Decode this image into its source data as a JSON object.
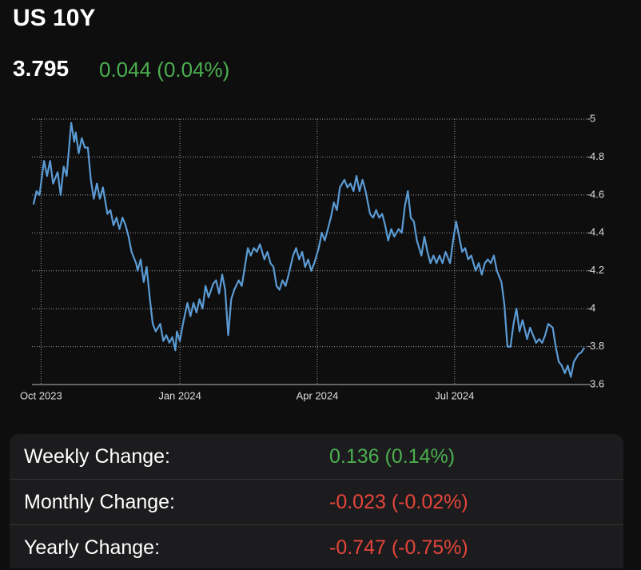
{
  "header": {
    "title": "US 10Y",
    "price": "3.795",
    "change": "0.044 (0.04%)",
    "change_color": "#4caf50"
  },
  "chart_data": {
    "type": "line",
    "color": "#5b9bd5",
    "x": [
      -5,
      -3,
      -1,
      2,
      4,
      6,
      8,
      11,
      13,
      15,
      17,
      20,
      22,
      23,
      25,
      27,
      29,
      31,
      33,
      35,
      37,
      39,
      41,
      44,
      46,
      48,
      50,
      52,
      54,
      56,
      58,
      60,
      63,
      64,
      66,
      68,
      70,
      72,
      74,
      76,
      79,
      81,
      83,
      85,
      87,
      89,
      90,
      92,
      94,
      97,
      99,
      101,
      103,
      105,
      107,
      109,
      111,
      114,
      116,
      118,
      120,
      122,
      124,
      126,
      128,
      131,
      133,
      135,
      137,
      139,
      141,
      143,
      145,
      148,
      150,
      152,
      154,
      156,
      158,
      160,
      162,
      164,
      167,
      169,
      171,
      173,
      175,
      177,
      179,
      181,
      184,
      186,
      188,
      190,
      192,
      194,
      196,
      198,
      201,
      203,
      205,
      207,
      209,
      211,
      213,
      215,
      218,
      220,
      222,
      224,
      226,
      228,
      230,
      232,
      234,
      237,
      239,
      241,
      243,
      245,
      247,
      249,
      252,
      254,
      256,
      258,
      260,
      262,
      264,
      266,
      268,
      271,
      273,
      275,
      277,
      279,
      281,
      283,
      285,
      288,
      290,
      292,
      294,
      296,
      298,
      300,
      302,
      305,
      307,
      309,
      311,
      313,
      315,
      317,
      319,
      322,
      324,
      326,
      328,
      330,
      332,
      334,
      336,
      339,
      341,
      343,
      345,
      347,
      349,
      351,
      353,
      356,
      358,
      360
    ],
    "values": [
      4.55,
      4.62,
      4.6,
      4.78,
      4.7,
      4.78,
      4.66,
      4.72,
      4.6,
      4.75,
      4.7,
      4.98,
      4.88,
      4.93,
      4.82,
      4.9,
      4.85,
      4.85,
      4.68,
      4.58,
      4.66,
      4.58,
      4.64,
      4.5,
      4.52,
      4.44,
      4.48,
      4.42,
      4.48,
      4.44,
      4.38,
      4.3,
      4.24,
      4.2,
      4.26,
      4.14,
      4.22,
      4.06,
      3.92,
      3.88,
      3.92,
      3.83,
      3.86,
      3.82,
      3.85,
      3.78,
      3.88,
      3.83,
      3.92,
      4.03,
      3.96,
      4.03,
      3.98,
      4.05,
      4.0,
      4.12,
      4.06,
      4.13,
      4.15,
      4.08,
      4.18,
      4.1,
      3.86,
      4.05,
      4.1,
      4.15,
      4.12,
      4.22,
      4.32,
      4.28,
      4.32,
      4.3,
      4.34,
      4.26,
      4.3,
      4.24,
      4.22,
      4.12,
      4.1,
      4.15,
      4.12,
      4.18,
      4.28,
      4.32,
      4.26,
      4.3,
      4.22,
      4.26,
      4.2,
      4.24,
      4.32,
      4.4,
      4.36,
      4.42,
      4.48,
      4.56,
      4.52,
      4.64,
      4.68,
      4.64,
      4.66,
      4.62,
      4.7,
      4.62,
      4.68,
      4.62,
      4.5,
      4.48,
      4.52,
      4.48,
      4.5,
      4.44,
      4.36,
      4.42,
      4.38,
      4.42,
      4.4,
      4.54,
      4.62,
      4.48,
      4.46,
      4.36,
      4.28,
      4.38,
      4.3,
      4.24,
      4.28,
      4.24,
      4.28,
      4.24,
      4.3,
      4.24,
      4.36,
      4.46,
      4.38,
      4.3,
      4.32,
      4.26,
      4.28,
      4.2,
      4.24,
      4.18,
      4.24,
      4.26,
      4.24,
      4.28,
      4.2,
      4.14,
      4.02,
      3.8,
      3.8,
      3.92,
      4.0,
      3.88,
      3.94,
      3.84,
      3.9,
      3.86,
      3.82,
      3.84,
      3.82,
      3.86,
      3.92,
      3.9,
      3.8,
      3.72,
      3.7,
      3.66,
      3.7,
      3.64,
      3.72,
      3.76,
      3.77,
      3.795
    ],
    "xlim": [
      -6,
      362
    ],
    "ylim": [
      3.6,
      5
    ],
    "xticks": [
      {
        "value": 0,
        "label": "Oct 2023"
      },
      {
        "value": 92,
        "label": "Jan 2024"
      },
      {
        "value": 183,
        "label": "Apr 2024"
      },
      {
        "value": 274,
        "label": "Jul 2024"
      }
    ],
    "yticks": [
      3.6,
      3.8,
      4,
      4.2,
      4.4,
      4.6,
      4.8,
      5
    ],
    "grid": true
  },
  "table": {
    "rows": [
      {
        "label": "Weekly Change:",
        "value": "0.136 (0.14%)",
        "color": "#4caf50"
      },
      {
        "label": "Monthly Change:",
        "value": "-0.023 (-0.02%)",
        "color": "#e5453b"
      },
      {
        "label": "Yearly Change:",
        "value": "-0.747 (-0.75%)",
        "color": "#e5453b"
      }
    ]
  }
}
